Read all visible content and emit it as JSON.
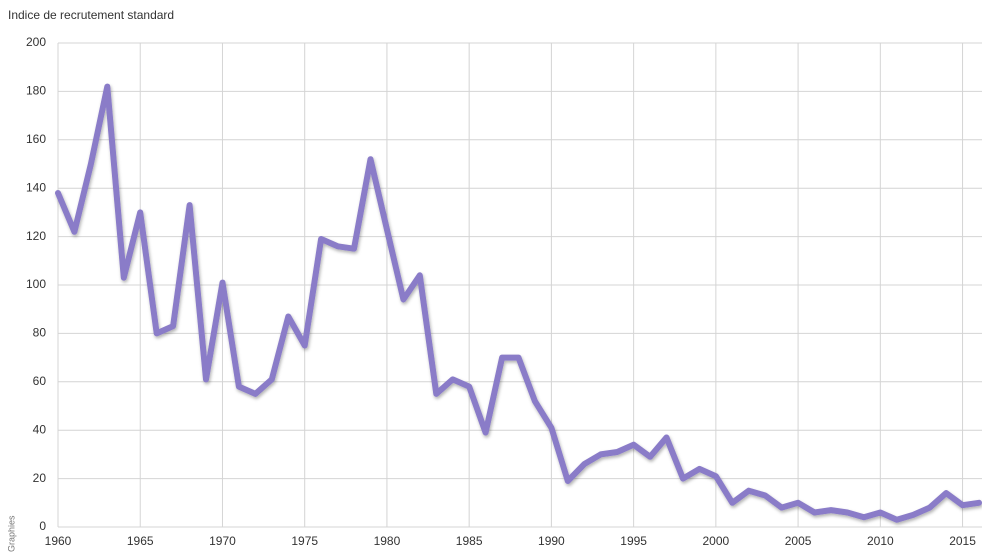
{
  "chart_data": {
    "type": "line",
    "y_label": "Indice de recrutement standard",
    "source": "Graphies",
    "x": [
      1960,
      1961,
      1962,
      1963,
      1964,
      1965,
      1966,
      1967,
      1968,
      1969,
      1970,
      1971,
      1972,
      1973,
      1974,
      1975,
      1976,
      1977,
      1978,
      1979,
      1980,
      1981,
      1982,
      1983,
      1984,
      1985,
      1986,
      1987,
      1988,
      1989,
      1990,
      1991,
      1992,
      1993,
      1994,
      1995,
      1996,
      1997,
      1998,
      1999,
      2000,
      2001,
      2002,
      2003,
      2004,
      2005,
      2006,
      2007,
      2008,
      2009,
      2010,
      2011,
      2012,
      2013,
      2014,
      2015,
      2016
    ],
    "values": [
      138,
      122,
      150,
      182,
      103,
      130,
      80,
      83,
      133,
      61,
      101,
      58,
      55,
      61,
      87,
      75,
      119,
      116,
      115,
      152,
      123,
      94,
      104,
      55,
      61,
      58,
      39,
      70,
      70,
      52,
      41,
      19,
      26,
      30,
      31,
      34,
      29,
      37,
      20,
      24,
      21,
      10,
      15,
      13,
      8,
      10,
      6,
      7,
      6,
      4,
      6,
      3,
      5,
      8,
      14,
      9,
      10
    ],
    "color": "#8a7cc8",
    "xlim": [
      1960,
      2016
    ],
    "xticks": [
      1960,
      1965,
      1970,
      1975,
      1980,
      1985,
      1990,
      1995,
      2000,
      2005,
      2010,
      2015
    ],
    "ylim": [
      0,
      200
    ],
    "yticks": [
      0,
      20,
      40,
      60,
      80,
      100,
      120,
      140,
      160,
      180,
      200
    ],
    "grid": true
  }
}
